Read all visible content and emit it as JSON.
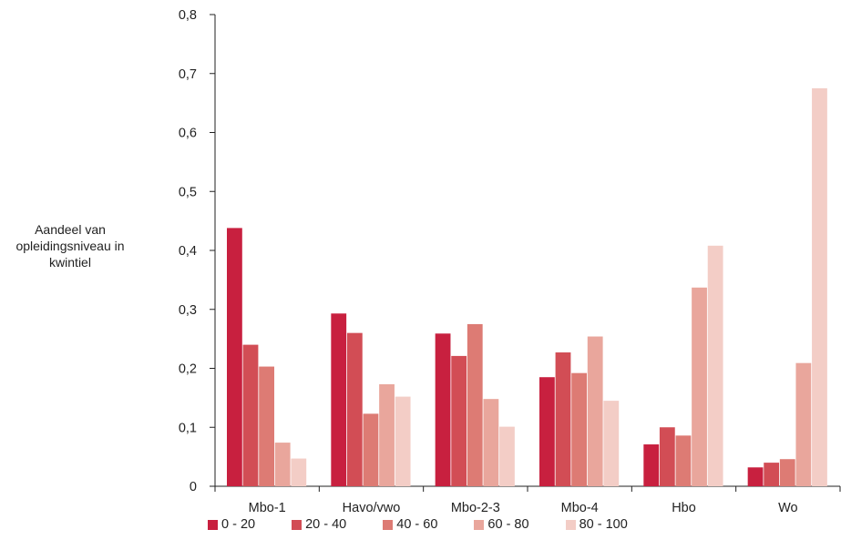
{
  "chart_data": {
    "type": "bar",
    "title": "",
    "ylabel": "Aandeel van opleidingsniveau in kwintiel",
    "xlabel": "",
    "ylim": [
      0,
      0.8
    ],
    "yticks": [
      "0",
      "0,1",
      "0,2",
      "0,3",
      "0,4",
      "0,5",
      "0,6",
      "0,7",
      "0,8"
    ],
    "categories": [
      "Mbo-1",
      "Havo/vwo",
      "Mbo-2-3",
      "Mbo-4",
      "Hbo",
      "Wo"
    ],
    "series": [
      {
        "name": "0 - 20",
        "color": "#c8203f",
        "values": [
          0.438,
          0.293,
          0.259,
          0.185,
          0.071,
          0.032
        ]
      },
      {
        "name": "20 - 40",
        "color": "#d24d55",
        "values": [
          0.24,
          0.26,
          0.221,
          0.227,
          0.1,
          0.04
        ]
      },
      {
        "name": "40 - 60",
        "color": "#dd7b74",
        "values": [
          0.203,
          0.123,
          0.275,
          0.192,
          0.086,
          0.046
        ]
      },
      {
        "name": "60 - 80",
        "color": "#e9a69c",
        "values": [
          0.074,
          0.173,
          0.148,
          0.254,
          0.337,
          0.209
        ]
      },
      {
        "name": "80 - 100",
        "color": "#f3cdc6",
        "values": [
          0.047,
          0.152,
          0.101,
          0.145,
          0.408,
          0.675
        ]
      }
    ],
    "legend_position": "bottom",
    "grid": false
  }
}
